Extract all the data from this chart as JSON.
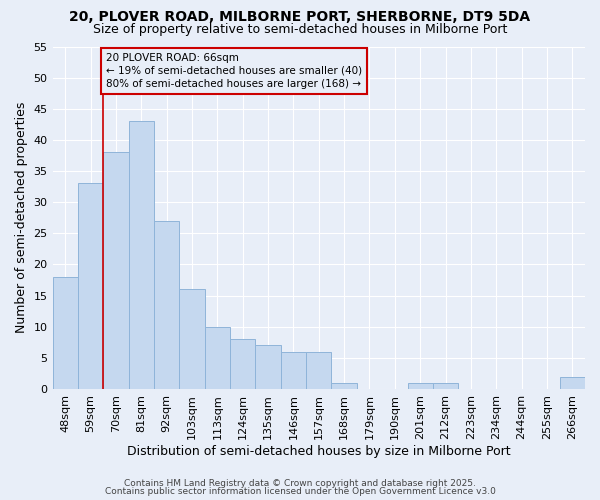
{
  "title": "20, PLOVER ROAD, MILBORNE PORT, SHERBORNE, DT9 5DA",
  "subtitle": "Size of property relative to semi-detached houses in Milborne Port",
  "xlabel": "Distribution of semi-detached houses by size in Milborne Port",
  "ylabel": "Number of semi-detached properties",
  "categories": [
    "48sqm",
    "59sqm",
    "70sqm",
    "81sqm",
    "92sqm",
    "103sqm",
    "113sqm",
    "124sqm",
    "135sqm",
    "146sqm",
    "157sqm",
    "168sqm",
    "179sqm",
    "190sqm",
    "201sqm",
    "212sqm",
    "223sqm",
    "234sqm",
    "244sqm",
    "255sqm",
    "266sqm"
  ],
  "values": [
    18,
    33,
    38,
    43,
    27,
    16,
    10,
    8,
    7,
    6,
    6,
    1,
    0,
    0,
    1,
    1,
    0,
    0,
    0,
    0,
    2
  ],
  "bar_color": "#c5d8ef",
  "bar_edge_color": "#8fb4d9",
  "background_color": "#e8eef8",
  "grid_color": "#ffffff",
  "red_line_x": 1.5,
  "annotation_title": "20 PLOVER ROAD: 66sqm",
  "annotation_line1": "← 19% of semi-detached houses are smaller (40)",
  "annotation_line2": "80% of semi-detached houses are larger (168) →",
  "annotation_box_color": "#cc0000",
  "ylim": [
    0,
    55
  ],
  "yticks": [
    0,
    5,
    10,
    15,
    20,
    25,
    30,
    35,
    40,
    45,
    50,
    55
  ],
  "footnote1": "Contains HM Land Registry data © Crown copyright and database right 2025.",
  "footnote2": "Contains public sector information licensed under the Open Government Licence v3.0",
  "title_fontsize": 10,
  "subtitle_fontsize": 9,
  "axis_label_fontsize": 9,
  "tick_fontsize": 8,
  "footnote_fontsize": 6.5
}
